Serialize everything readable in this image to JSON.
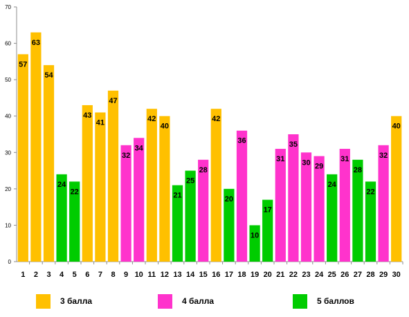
{
  "chart_data": {
    "type": "bar",
    "categories": [
      "1",
      "2",
      "3",
      "4",
      "5",
      "6",
      "7",
      "8",
      "9",
      "10",
      "11",
      "12",
      "13",
      "14",
      "15",
      "16",
      "17",
      "18",
      "19",
      "20",
      "21",
      "22",
      "23",
      "24",
      "25",
      "26",
      "27",
      "28",
      "29",
      "30"
    ],
    "values": [
      57,
      63,
      54,
      24,
      22,
      43,
      41,
      47,
      32,
      34,
      42,
      40,
      21,
      25,
      28,
      42,
      20,
      36,
      10,
      17,
      31,
      35,
      30,
      29,
      24,
      31,
      28,
      22,
      32,
      40
    ],
    "groups": [
      "3 балла",
      "3 балла",
      "3 балла",
      "5 баллов",
      "5 баллов",
      "3 балла",
      "3 балла",
      "3 балла",
      "4 балла",
      "4 балла",
      "3 балла",
      "3 балла",
      "5 баллов",
      "5 баллов",
      "4 балла",
      "3 балла",
      "5 баллов",
      "4 балла",
      "5 баллов",
      "5 баллов",
      "4 балла",
      "4 балла",
      "4 балла",
      "4 балла",
      "5 баллов",
      "4 балла",
      "5 баллов",
      "5 баллов",
      "4 балла",
      "3 балла"
    ],
    "y_ticks": [
      "0",
      "10",
      "20",
      "30",
      "40",
      "50",
      "60",
      "70"
    ],
    "ylim": [
      0,
      70
    ],
    "grid": false,
    "legend": [
      {
        "name": "3 балла",
        "color": "#ffc000"
      },
      {
        "name": "4 балла",
        "color": "#ff33cc"
      },
      {
        "name": "5 баллов",
        "color": "#00cc00"
      }
    ],
    "legend_position": "bottom"
  }
}
